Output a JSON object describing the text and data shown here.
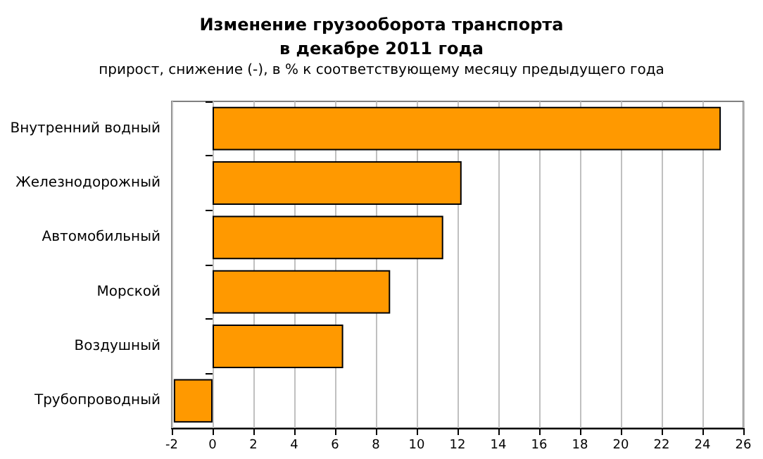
{
  "chart_data": {
    "type": "bar",
    "orientation": "horizontal",
    "title": "Изменение грузооборота транспорта\nв декабре 2011 года",
    "subtitle": "прирост, снижение (-), в % к соответствующему месяцу предыдущего года",
    "categories": [
      "Внутренний водный",
      "Железнодорожный",
      "Автомобильный",
      "Морской",
      "Воздушный",
      "Трубопроводный"
    ],
    "values": [
      24.9,
      12.2,
      11.3,
      8.7,
      6.4,
      -1.9
    ],
    "color": "#ff9900",
    "xlim": [
      -2,
      26
    ],
    "xticks": [
      -2,
      0,
      2,
      4,
      6,
      8,
      10,
      12,
      14,
      16,
      18,
      20,
      22,
      24,
      26
    ],
    "grid": "x"
  }
}
